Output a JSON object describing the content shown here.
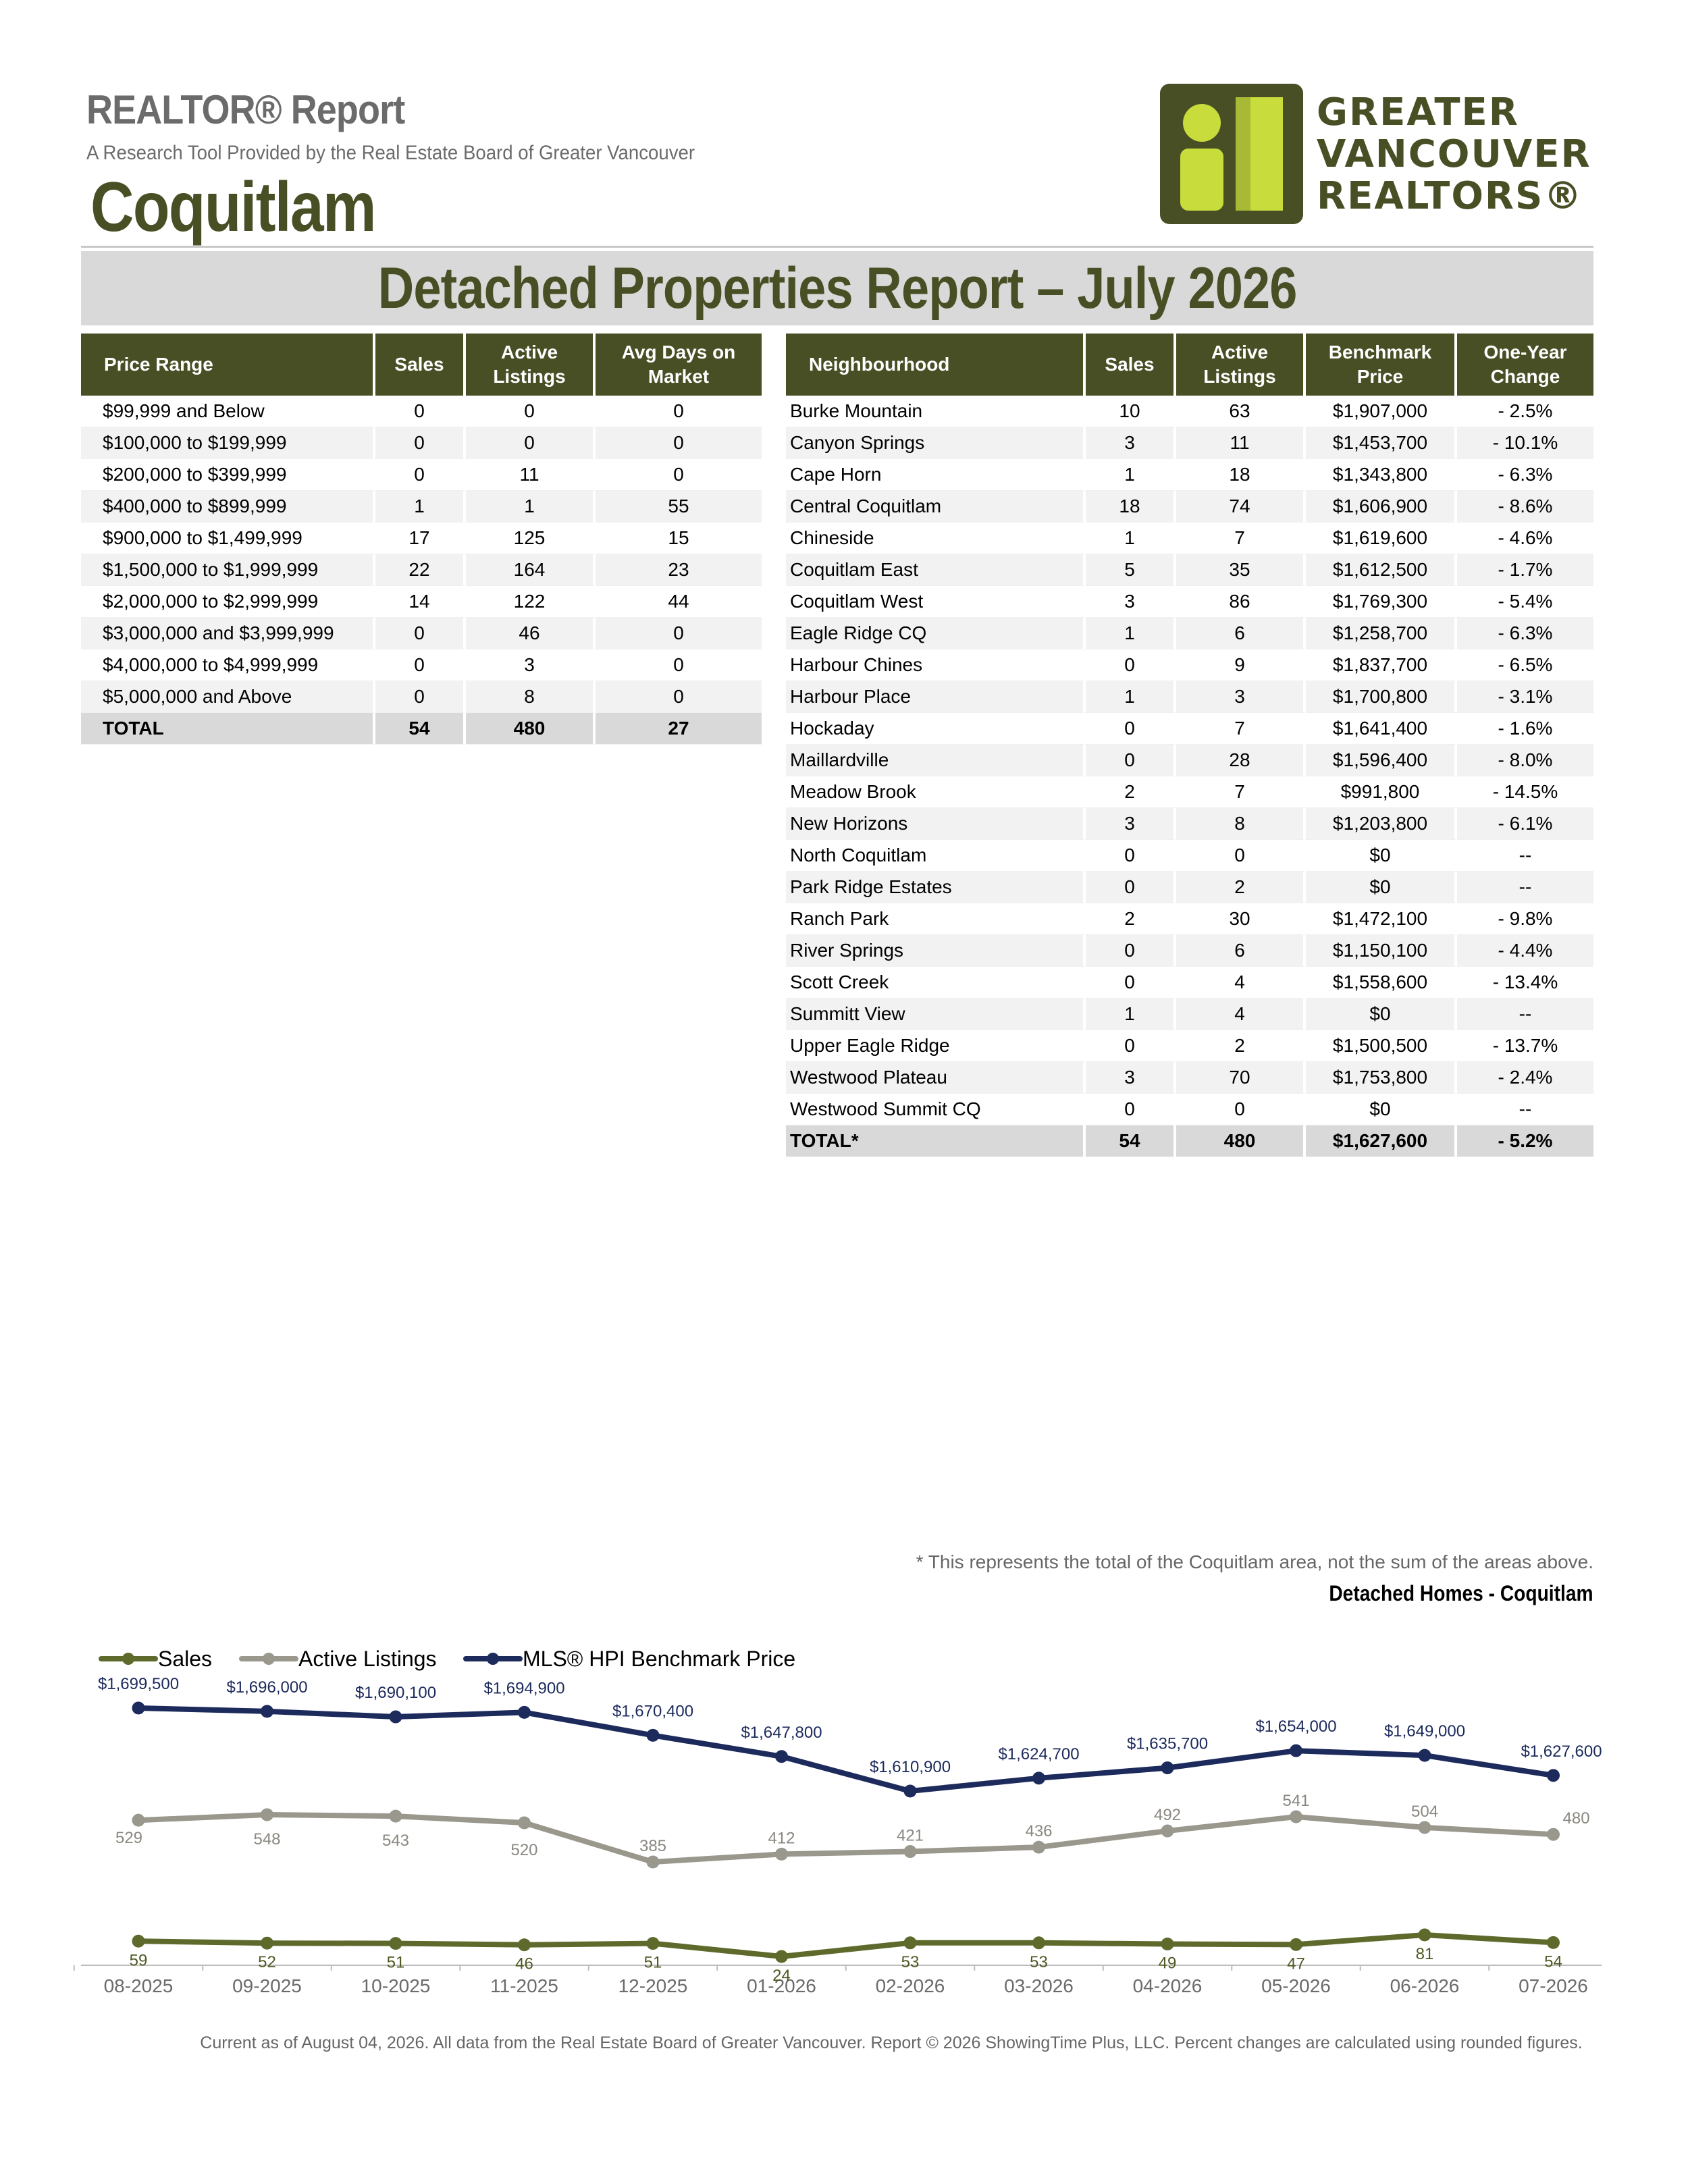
{
  "header": {
    "report_title": "REALTOR® Report",
    "subtitle": "A Research Tool Provided by the Real Estate Board of Greater Vancouver",
    "area": "Coquitlam",
    "logo_lines": [
      "GREATER",
      "VANCOUVER",
      "REALTORS®"
    ]
  },
  "banner": "Detached Properties Report – July 2026",
  "price_table": {
    "headers": [
      "Price Range",
      "Sales",
      "Active Listings",
      "Avg Days on Market"
    ],
    "rows": [
      [
        "$99,999 and Below",
        "0",
        "0",
        "0"
      ],
      [
        "$100,000 to $199,999",
        "0",
        "0",
        "0"
      ],
      [
        "$200,000 to $399,999",
        "0",
        "11",
        "0"
      ],
      [
        "$400,000 to $899,999",
        "1",
        "1",
        "55"
      ],
      [
        "$900,000 to $1,499,999",
        "17",
        "125",
        "15"
      ],
      [
        "$1,500,000 to $1,999,999",
        "22",
        "164",
        "23"
      ],
      [
        "$2,000,000 to $2,999,999",
        "14",
        "122",
        "44"
      ],
      [
        "$3,000,000 and $3,999,999",
        "0",
        "46",
        "0"
      ],
      [
        "$4,000,000 to $4,999,999",
        "0",
        "3",
        "0"
      ],
      [
        "$5,000,000 and Above",
        "0",
        "8",
        "0"
      ]
    ],
    "total": [
      "TOTAL",
      "54",
      "480",
      "27"
    ]
  },
  "nbhd_table": {
    "headers": [
      "Neighbourhood",
      "Sales",
      "Active Listings",
      "Benchmark Price",
      "One-Year Change"
    ],
    "rows": [
      [
        "Burke Mountain",
        "10",
        "63",
        "$1,907,000",
        "- 2.5%"
      ],
      [
        "Canyon Springs",
        "3",
        "11",
        "$1,453,700",
        "- 10.1%"
      ],
      [
        "Cape Horn",
        "1",
        "18",
        "$1,343,800",
        "- 6.3%"
      ],
      [
        "Central Coquitlam",
        "18",
        "74",
        "$1,606,900",
        "- 8.6%"
      ],
      [
        "Chineside",
        "1",
        "7",
        "$1,619,600",
        "- 4.6%"
      ],
      [
        "Coquitlam East",
        "5",
        "35",
        "$1,612,500",
        "- 1.7%"
      ],
      [
        "Coquitlam West",
        "3",
        "86",
        "$1,769,300",
        "- 5.4%"
      ],
      [
        "Eagle Ridge CQ",
        "1",
        "6",
        "$1,258,700",
        "- 6.3%"
      ],
      [
        "Harbour Chines",
        "0",
        "9",
        "$1,837,700",
        "- 6.5%"
      ],
      [
        "Harbour Place",
        "1",
        "3",
        "$1,700,800",
        "- 3.1%"
      ],
      [
        "Hockaday",
        "0",
        "7",
        "$1,641,400",
        "- 1.6%"
      ],
      [
        "Maillardville",
        "0",
        "28",
        "$1,596,400",
        "- 8.0%"
      ],
      [
        "Meadow Brook",
        "2",
        "7",
        "$991,800",
        "- 14.5%"
      ],
      [
        "New Horizons",
        "3",
        "8",
        "$1,203,800",
        "- 6.1%"
      ],
      [
        "North Coquitlam",
        "0",
        "0",
        "$0",
        "--"
      ],
      [
        "Park Ridge Estates",
        "0",
        "2",
        "$0",
        "--"
      ],
      [
        "Ranch Park",
        "2",
        "30",
        "$1,472,100",
        "- 9.8%"
      ],
      [
        "River Springs",
        "0",
        "6",
        "$1,150,100",
        "- 4.4%"
      ],
      [
        "Scott Creek",
        "0",
        "4",
        "$1,558,600",
        "- 13.4%"
      ],
      [
        "Summitt View",
        "1",
        "4",
        "$0",
        "--"
      ],
      [
        "Upper Eagle Ridge",
        "0",
        "2",
        "$1,500,500",
        "- 13.7%"
      ],
      [
        "Westwood Plateau",
        "3",
        "70",
        "$1,753,800",
        "- 2.4%"
      ],
      [
        "Westwood Summit CQ",
        "0",
        "0",
        "$0",
        "--"
      ]
    ],
    "total": [
      "TOTAL*",
      "54",
      "480",
      "$1,627,600",
      "- 5.2%"
    ]
  },
  "footnote": "* This represents the total of the Coquitlam area, not the sum of the areas above.",
  "chart_title": "Detached Homes - Coquitlam",
  "chart_data": {
    "type": "line",
    "categories": [
      "08-2025",
      "09-2025",
      "10-2025",
      "11-2025",
      "12-2025",
      "01-2026",
      "02-2026",
      "03-2026",
      "04-2026",
      "05-2026",
      "06-2026",
      "07-2026"
    ],
    "series": [
      {
        "name": "Sales",
        "color": "#5d6a2c",
        "values": [
          59,
          52,
          51,
          46,
          51,
          24,
          53,
          53,
          49,
          47,
          81,
          54
        ]
      },
      {
        "name": "Active Listings",
        "color": "#9a978d",
        "values": [
          529,
          548,
          543,
          520,
          385,
          412,
          421,
          436,
          492,
          541,
          504,
          480
        ]
      },
      {
        "name": "MLS® HPI Benchmark Price",
        "color": "#1c2a5c",
        "values": [
          1699500,
          1696000,
          1690100,
          1694900,
          1670400,
          1647800,
          1610900,
          1624700,
          1635700,
          1654000,
          1649000,
          1627600
        ],
        "labels": [
          "$1,699,500",
          "$1,696,000",
          "$1,690,100",
          "$1,694,900",
          "$1,670,400",
          "$1,647,800",
          "$1,610,900",
          "$1,624,700",
          "$1,635,700",
          "$1,654,000",
          "$1,649,000",
          "$1,627,600"
        ]
      }
    ],
    "legend": "top-left"
  },
  "footer": "Current as of August 04, 2026. All data from the Real Estate Board of Greater Vancouver.  Report © 2026 ShowingTime Plus, LLC. Percent changes are calculated using rounded figures."
}
